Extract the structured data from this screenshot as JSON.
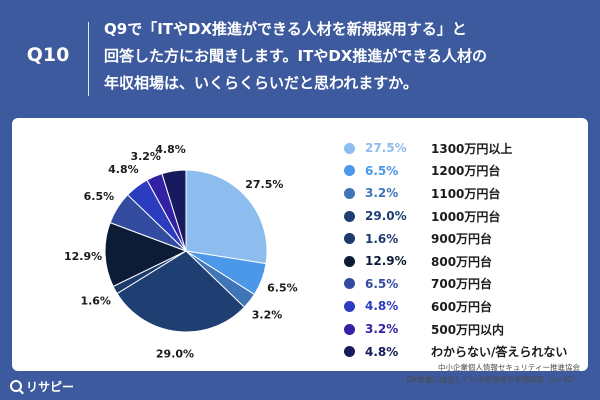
{
  "header": {
    "question_number": "Q10",
    "question_lines": [
      "Q9で「ITやDX推進ができる人材を新規採用する」と",
      "回答した方にお聞きします。ITやDX推進ができる人材の",
      "年収相場は、いくらくらいだと思われますか。"
    ]
  },
  "chart_data": {
    "type": "pie",
    "title": "",
    "categories": [
      "1300万円以上",
      "1200万円台",
      "1100万円台",
      "1000万円台",
      "900万円台",
      "800万円台",
      "700万円台",
      "600万円台",
      "500万円以内",
      "わからない/答えられない"
    ],
    "values": [
      27.5,
      6.5,
      3.2,
      29.0,
      1.6,
      12.9,
      6.5,
      4.8,
      3.2,
      4.8
    ],
    "value_labels": [
      "27.5%",
      "6.5%",
      "3.2%",
      "29.0%",
      "1.6%",
      "12.9%",
      "6.5%",
      "4.8%",
      "3.2%",
      "4.8%"
    ],
    "colors": [
      "#8dbcee",
      "#4b97e8",
      "#3f74b6",
      "#1f3f73",
      "#1c3a6c",
      "#0c1b36",
      "#334ca0",
      "#2c3cbf",
      "#3222a3",
      "#171a5c"
    ],
    "legend_position": "right",
    "start_angle_deg": 0,
    "direction": "clockwise"
  },
  "source": {
    "line1": "中小企業個人情報セキュリティー推進協会",
    "line2": "DX推進に成功している経営者の実態調査（n=62）"
  },
  "footer": {
    "brand": "リサピー"
  }
}
